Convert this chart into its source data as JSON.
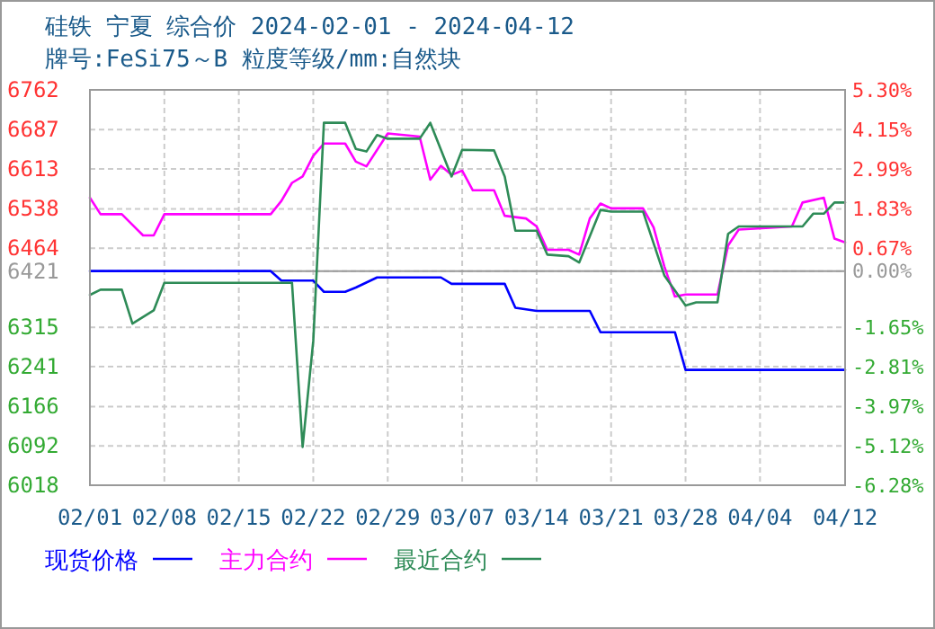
{
  "chart_data": {
    "type": "line",
    "title": "硅铁 宁夏 综合价 2024-02-01 - 2024-04-12",
    "subtitle": "牌号:FeSi75～B 粒度等级/mm:自然块",
    "xlim": [
      "2024-02-01",
      "2024-04-12"
    ],
    "xticks": [
      {
        "value": "2024-02-01",
        "label": "02/01"
      },
      {
        "value": "2024-02-08",
        "label": "02/08"
      },
      {
        "value": "2024-02-15",
        "label": "02/15"
      },
      {
        "value": "2024-02-22",
        "label": "02/22"
      },
      {
        "value": "2024-02-29",
        "label": "02/29"
      },
      {
        "value": "2024-03-07",
        "label": "03/07"
      },
      {
        "value": "2024-03-14",
        "label": "03/14"
      },
      {
        "value": "2024-03-21",
        "label": "03/21"
      },
      {
        "value": "2024-03-28",
        "label": "03/28"
      },
      {
        "value": "2024-04-04",
        "label": "04/04"
      },
      {
        "value": "2024-04-12",
        "label": "04/12"
      }
    ],
    "ylim": [
      6018,
      6762
    ],
    "yticks": [
      6762,
      6687,
      6613,
      6538,
      6464,
      6421,
      6315,
      6241,
      6166,
      6092,
      6018
    ],
    "y2lim": [
      -6.28,
      5.3
    ],
    "y2ticks": [
      {
        "value": 5.3,
        "label": "5.30%"
      },
      {
        "value": 4.15,
        "label": "4.15%"
      },
      {
        "value": 2.99,
        "label": "2.99%"
      },
      {
        "value": 1.83,
        "label": "1.83%"
      },
      {
        "value": 0.67,
        "label": "0.67%"
      },
      {
        "value": 0,
        "label": "0.00%"
      },
      {
        "value": -1.65,
        "label": "-1.65%"
      },
      {
        "value": -2.81,
        "label": "-2.81%"
      },
      {
        "value": -3.97,
        "label": "-3.97%"
      },
      {
        "value": -5.12,
        "label": "-5.12%"
      },
      {
        "value": -6.28,
        "label": "-6.28%"
      }
    ],
    "ref_lines": [
      {
        "axis": "y",
        "value": 6421,
        "color": "#999999"
      }
    ],
    "grid": true,
    "legend": "bottom",
    "marker": "none",
    "line_style": "solid",
    "series": [
      {
        "name": "现货价格",
        "color": "#0000ff",
        "x": [
          "2024-02-01",
          "2024-02-18",
          "2024-02-19",
          "2024-02-22",
          "2024-02-23",
          "2024-02-25",
          "2024-02-26",
          "2024-02-28",
          "2024-03-05",
          "2024-03-06",
          "2024-03-11",
          "2024-03-12",
          "2024-03-14",
          "2024-03-19",
          "2024-03-20",
          "2024-03-27",
          "2024-03-28",
          "2024-04-12"
        ],
        "values": [
          6421,
          6421,
          6403,
          6403,
          6382,
          6382,
          6390,
          6409,
          6409,
          6397,
          6397,
          6352,
          6346,
          6346,
          6306,
          6306,
          6235,
          6235
        ]
      },
      {
        "name": "主力合约",
        "color": "#ff00ff",
        "x": [
          "2024-02-01",
          "2024-02-02",
          "2024-02-04",
          "2024-02-06",
          "2024-02-07",
          "2024-02-08",
          "2024-02-18",
          "2024-02-19",
          "2024-02-20",
          "2024-02-21",
          "2024-02-22",
          "2024-02-23",
          "2024-02-25",
          "2024-02-26",
          "2024-02-27",
          "2024-02-29",
          "2024-03-03",
          "2024-03-04",
          "2024-03-05",
          "2024-03-06",
          "2024-03-07",
          "2024-03-08",
          "2024-03-10",
          "2024-03-11",
          "2024-03-13",
          "2024-03-14",
          "2024-03-15",
          "2024-03-17",
          "2024-03-18",
          "2024-03-19",
          "2024-03-20",
          "2024-03-21",
          "2024-03-24",
          "2024-03-25",
          "2024-03-26",
          "2024-03-27",
          "2024-03-28",
          "2024-03-31",
          "2024-04-01",
          "2024-04-02",
          "2024-04-07",
          "2024-04-08",
          "2024-04-10",
          "2024-04-11",
          "2024-04-12"
        ],
        "values": [
          6559,
          6528,
          6528,
          6488,
          6488,
          6528,
          6528,
          6553,
          6587,
          6599,
          6638,
          6661,
          6661,
          6627,
          6618,
          6680,
          6674,
          6593,
          6619,
          6602,
          6610,
          6573,
          6573,
          6525,
          6520,
          6505,
          6461,
          6461,
          6452,
          6520,
          6548,
          6539,
          6539,
          6503,
          6430,
          6373,
          6377,
          6377,
          6469,
          6499,
          6505,
          6550,
          6559,
          6482,
          6475
        ]
      },
      {
        "name": "最近合约",
        "color": "#2e8b57",
        "x": [
          "2024-02-01",
          "2024-02-02",
          "2024-02-04",
          "2024-02-05",
          "2024-02-07",
          "2024-02-08",
          "2024-02-20",
          "2024-02-21",
          "2024-02-22",
          "2024-02-23",
          "2024-02-25",
          "2024-02-26",
          "2024-02-27",
          "2024-02-28",
          "2024-02-29",
          "2024-03-03",
          "2024-03-04",
          "2024-03-06",
          "2024-03-07",
          "2024-03-10",
          "2024-03-11",
          "2024-03-12",
          "2024-03-14",
          "2024-03-15",
          "2024-03-17",
          "2024-03-18",
          "2024-03-20",
          "2024-03-21",
          "2024-03-24",
          "2024-03-26",
          "2024-03-28",
          "2024-03-29",
          "2024-03-31",
          "2024-04-01",
          "2024-04-02",
          "2024-04-08",
          "2024-04-09",
          "2024-04-10",
          "2024-04-11",
          "2024-04-12"
        ],
        "values": [
          6376,
          6386,
          6386,
          6322,
          6347,
          6399,
          6399,
          6090,
          6290,
          6700,
          6700,
          6651,
          6646,
          6677,
          6670,
          6670,
          6700,
          6599,
          6649,
          6648,
          6599,
          6497,
          6497,
          6452,
          6449,
          6437,
          6536,
          6533,
          6533,
          6413,
          6356,
          6362,
          6362,
          6491,
          6505,
          6505,
          6529,
          6529,
          6550,
          6550
        ]
      }
    ]
  }
}
